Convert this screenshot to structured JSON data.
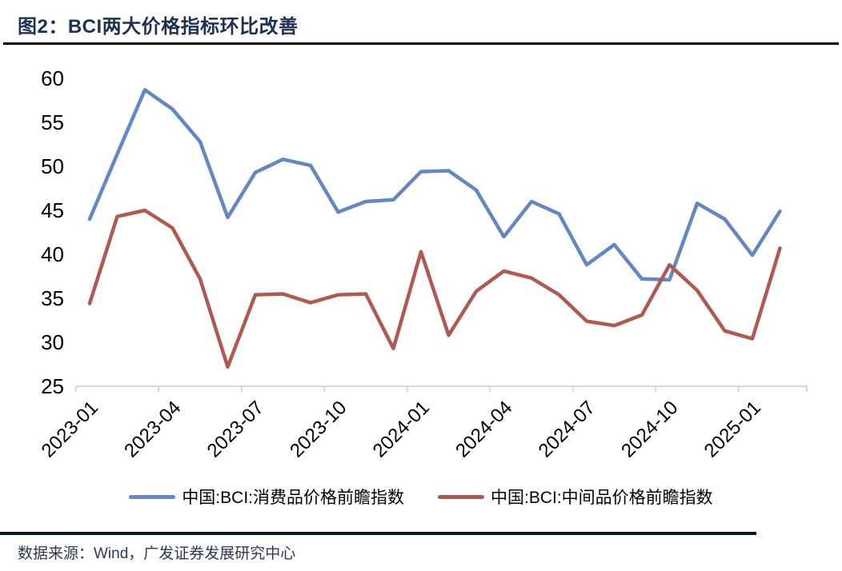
{
  "header": {
    "title": "图2：BCI两大价格指标环比改善"
  },
  "footer": {
    "source": "数据来源：Wind，广发证券发展研究中心"
  },
  "colors": {
    "title_navy": "#1F3150",
    "source_navy": "#2B3A52",
    "rule_black": "#000000",
    "axis_line": "#D6D6D6",
    "axis_text": "#000000",
    "consumer_line": "#6486C1",
    "intermediate_line": "#AE5A52"
  },
  "chart_data": {
    "type": "line",
    "title": "",
    "xlabel": "",
    "ylabel": "",
    "ylim": [
      25,
      60
    ],
    "y_ticks": [
      25,
      30,
      35,
      40,
      45,
      50,
      55,
      60
    ],
    "grid": false,
    "legend_position": "bottom",
    "x": [
      "2023-01",
      "2023-02",
      "2023-03",
      "2023-04",
      "2023-05",
      "2023-06",
      "2023-07",
      "2023-08",
      "2023-09",
      "2023-10",
      "2023-11",
      "2023-12",
      "2024-01",
      "2024-02",
      "2024-03",
      "2024-04",
      "2024-05",
      "2024-06",
      "2024-07",
      "2024-08",
      "2024-09",
      "2024-10",
      "2024-11",
      "2024-12",
      "2025-01",
      "2025-02"
    ],
    "x_tick_labels": [
      "2023-01",
      "2023-04",
      "2023-07",
      "2023-10",
      "2024-01",
      "2024-04",
      "2024-07",
      "2024-10",
      "2025-01"
    ],
    "series": [
      {
        "id": "consumer-price-index",
        "name": "中国:BCI:消费品价格前瞻指数",
        "color": "#6486C1",
        "values": [
          44.0,
          51.4,
          58.7,
          56.5,
          52.8,
          44.2,
          49.3,
          50.8,
          50.1,
          44.8,
          46.0,
          46.2,
          49.4,
          49.5,
          47.3,
          42.0,
          46.0,
          44.6,
          38.8,
          41.1,
          37.2,
          37.1,
          45.8,
          44.0,
          39.9,
          44.9
        ]
      },
      {
        "id": "intermediate-price-index",
        "name": "中国:BCI:中间品价格前瞻指数",
        "color": "#AE5A52",
        "values": [
          34.4,
          44.3,
          45.0,
          43.0,
          37.2,
          27.2,
          35.4,
          35.5,
          34.5,
          35.4,
          35.5,
          29.3,
          40.3,
          30.8,
          35.8,
          38.1,
          37.3,
          35.4,
          32.4,
          31.9,
          33.1,
          38.8,
          35.9,
          31.3,
          30.4,
          40.7
        ]
      }
    ]
  }
}
